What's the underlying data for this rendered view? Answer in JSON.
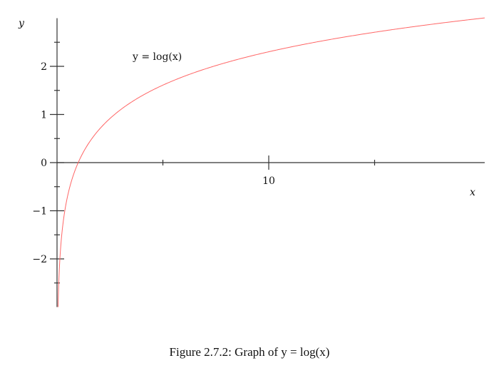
{
  "chart_data": {
    "type": "line",
    "function": "y = log(x)",
    "annotation": "y = log(x)",
    "xlabel": "x",
    "ylabel": "y",
    "xlim": [
      0,
      20.2
    ],
    "ylim": [
      -3,
      3
    ],
    "x_major_ticks": [
      10
    ],
    "x_tick_labels": [
      "10"
    ],
    "x_minor_ticks": [
      5,
      15
    ],
    "y_major_ticks": [
      -2,
      -1,
      0,
      1,
      2
    ],
    "y_tick_labels": [
      "−2",
      "−1",
      "0",
      "1",
      "2"
    ],
    "y_minor_ticks": [
      -2.5,
      -1.5,
      -0.5,
      0.5,
      1.5,
      2.5
    ],
    "grid": false,
    "series": [
      {
        "color": "#ff6666"
      }
    ]
  },
  "caption": "Figure 2.7.2: Graph of y = log(x)"
}
